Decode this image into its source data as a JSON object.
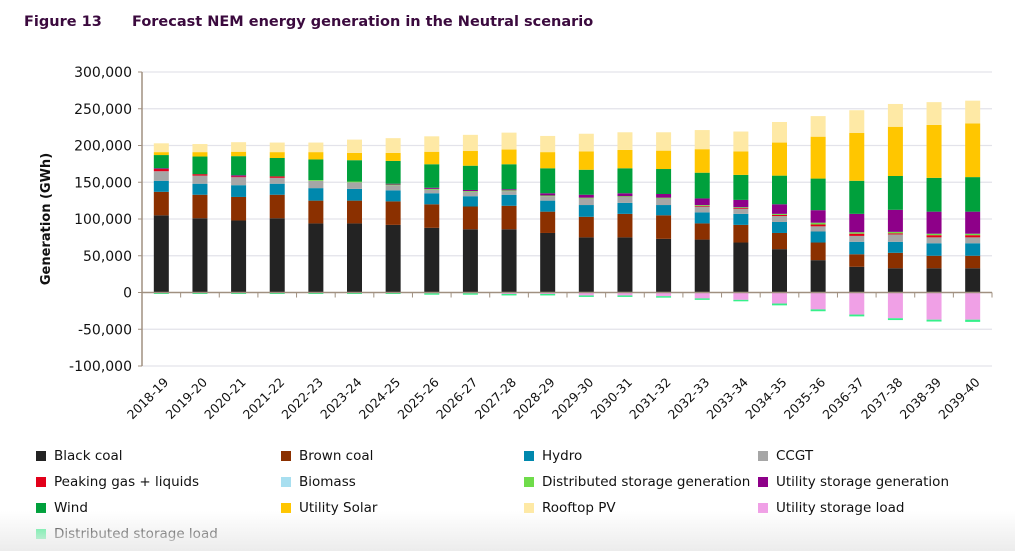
{
  "figure": {
    "number": "Figure 13",
    "title": "Forecast NEM energy generation in the Neutral scenario"
  },
  "chart_data": {
    "type": "bar",
    "stacked": true,
    "title": "Forecast NEM energy generation in the Neutral scenario",
    "xlabel": "",
    "ylabel": "Generation (GWh)",
    "ylim": [
      -100000,
      300000
    ],
    "yticks": [
      300000,
      250000,
      200000,
      150000,
      100000,
      50000,
      0,
      -50000,
      -100000
    ],
    "ytick_labels": [
      "300,000",
      "250,000",
      "200,000",
      "150,000",
      "100,000",
      "50,000",
      "0",
      "-50,000",
      "-100,000"
    ],
    "grid": true,
    "legend_position": "bottom",
    "categories": [
      "2018-19",
      "2019-20",
      "2020-21",
      "2021-22",
      "2022-23",
      "2023-24",
      "2024-25",
      "2025-26",
      "2026-27",
      "2027-28",
      "2028-29",
      "2029-30",
      "2030-31",
      "2031-32",
      "2032-33",
      "2033-34",
      "2034-35",
      "2035-36",
      "2036-37",
      "2037-38",
      "2038-39",
      "2039-40"
    ],
    "series": [
      {
        "name": "Black coal",
        "color": "#232323",
        "values": [
          105000,
          101000,
          98000,
          101000,
          94000,
          94000,
          92000,
          88000,
          86000,
          86000,
          81000,
          75000,
          75000,
          73000,
          72000,
          68000,
          59000,
          44000,
          35000,
          33000,
          33000,
          33000
        ]
      },
      {
        "name": "Brown coal",
        "color": "#8b3000",
        "values": [
          32000,
          32000,
          32000,
          32000,
          31000,
          31000,
          32000,
          32000,
          31000,
          32000,
          29000,
          28000,
          32000,
          32000,
          22000,
          24000,
          22000,
          24000,
          17000,
          21000,
          17000,
          17000
        ]
      },
      {
        "name": "Hydro",
        "color": "#0088ad",
        "values": [
          15000,
          15000,
          16000,
          15000,
          17000,
          16000,
          15000,
          15000,
          14000,
          15000,
          15000,
          16000,
          15000,
          14000,
          15000,
          15000,
          15000,
          15000,
          17000,
          15000,
          17000,
          17000
        ]
      },
      {
        "name": "CCGT",
        "color": "#a6a6a6",
        "values": [
          13000,
          11000,
          11000,
          8000,
          10000,
          9000,
          7000,
          5000,
          6000,
          5000,
          6000,
          9000,
          8000,
          9000,
          8000,
          7000,
          8000,
          7000,
          8000,
          10000,
          8000,
          8000
        ]
      },
      {
        "name": "Peaking gas + liquids",
        "color": "#e2001a",
        "values": [
          3000,
          2000,
          1000,
          2000,
          0,
          0,
          0,
          0,
          0,
          0,
          0,
          0,
          0,
          0,
          1000,
          1000,
          1500,
          2500,
          3000,
          1500,
          3000,
          3000
        ]
      },
      {
        "name": "Biomass",
        "color": "#a8dff0",
        "values": [
          0,
          0,
          0,
          0,
          0,
          0,
          0,
          0,
          0,
          0,
          0,
          0,
          0,
          0,
          0,
          0,
          0,
          0,
          0,
          0,
          0,
          0
        ]
      },
      {
        "name": "Distributed storage generation",
        "color": "#6fdc4a",
        "values": [
          0,
          0,
          0,
          0,
          1000,
          1000,
          1000,
          1000,
          1000,
          1000,
          1000,
          1000,
          1000,
          1000,
          1000,
          1000,
          1500,
          2500,
          2000,
          2000,
          2000,
          2000
        ]
      },
      {
        "name": "Utility storage generation",
        "color": "#8e0089",
        "values": [
          1000,
          0,
          1500,
          0,
          0,
          0,
          1000,
          1500,
          1500,
          1500,
          3000,
          4000,
          4000,
          5000,
          9000,
          10000,
          13000,
          17000,
          25000,
          30000,
          30000,
          30000
        ]
      },
      {
        "name": "Wind",
        "color": "#00a03c",
        "values": [
          18000,
          24000,
          26000,
          25000,
          28000,
          29000,
          31000,
          32000,
          33000,
          34000,
          34000,
          34000,
          34000,
          34000,
          35000,
          34000,
          39000,
          43000,
          45000,
          46000,
          46000,
          47000
        ]
      },
      {
        "name": "Utility Solar",
        "color": "#ffc600",
        "values": [
          4000,
          6000,
          6000,
          8000,
          10000,
          10000,
          11000,
          17000,
          20000,
          20000,
          22000,
          25000,
          25000,
          25000,
          32000,
          32000,
          45000,
          57000,
          65000,
          67000,
          72000,
          73000
        ]
      },
      {
        "name": "Rooftop PV",
        "color": "#fee9a5",
        "values": [
          12000,
          11000,
          13000,
          13000,
          13000,
          18000,
          20000,
          21000,
          22000,
          23000,
          22000,
          24000,
          24000,
          25000,
          26000,
          27000,
          28000,
          28000,
          31000,
          31000,
          31000,
          31000
        ]
      },
      {
        "name": "Utility storage load",
        "color": "#f0a0e6",
        "values": [
          0,
          0,
          0,
          0,
          0,
          0,
          0,
          -1000,
          -1000,
          -2000,
          -2000,
          -4000,
          -4000,
          -5000,
          -8000,
          -10000,
          -15000,
          -23000,
          -30000,
          -35000,
          -37000,
          -37000
        ]
      },
      {
        "name": "Distributed storage load",
        "color": "#36f08a",
        "values": [
          -2000,
          -2000,
          -2000,
          -2000,
          -2000,
          -2000,
          -2000,
          -2000,
          -2000,
          -2000,
          -2000,
          -2000,
          -2000,
          -2000,
          -2000,
          -2000,
          -2500,
          -2500,
          -2500,
          -2500,
          -2500,
          -3000
        ]
      }
    ]
  },
  "legend": {
    "items": [
      {
        "label": "Black coal",
        "color": "#232323"
      },
      {
        "label": "Brown coal",
        "color": "#8b3000"
      },
      {
        "label": "Hydro",
        "color": "#0088ad"
      },
      {
        "label": "CCGT",
        "color": "#a6a6a6"
      },
      {
        "label": "Peaking gas + liquids",
        "color": "#e2001a"
      },
      {
        "label": "Biomass",
        "color": "#a8dff0"
      },
      {
        "label": "Distributed storage generation",
        "color": "#6fdc4a"
      },
      {
        "label": "Utility storage generation",
        "color": "#8e0089"
      },
      {
        "label": "Wind",
        "color": "#00a03c"
      },
      {
        "label": "Utility Solar",
        "color": "#ffc600"
      },
      {
        "label": "Rooftop PV",
        "color": "#fee9a5"
      },
      {
        "label": "Utility storage load",
        "color": "#f0a0e6"
      },
      {
        "label": "Distributed storage load",
        "color": "#36f08a"
      }
    ]
  }
}
